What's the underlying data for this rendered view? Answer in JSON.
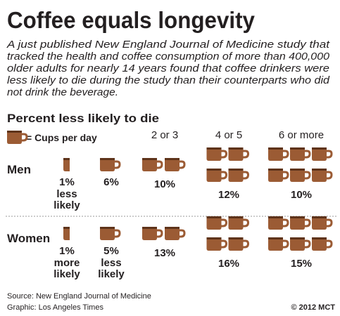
{
  "title": "Coffee equals longevity",
  "intro": [
    "A  just published New England Journal of Medicine study that",
    "tracked the health and coffee consumption of more than 400,000",
    "older adults for nearly 14 years found that coffee drinkers were",
    "less likely to die during the study than their counterparts who did",
    "not drink the beverage."
  ],
  "subtitle": "Percent less likely to die",
  "legend": "= Cups per day",
  "columns": [
    null,
    null,
    "2 or 3",
    "4 or 5",
    "6 or more"
  ],
  "rows": [
    {
      "label": "Men",
      "cells": [
        {
          "text": "1%",
          "note": [
            "less",
            "likely"
          ]
        },
        {
          "text": "6%"
        },
        {
          "text": "10%"
        },
        {
          "text": "12%"
        },
        {
          "text": "10%"
        }
      ]
    },
    {
      "label": "Women",
      "cells": [
        {
          "text": "1%",
          "note": [
            "more",
            "likely"
          ]
        },
        {
          "text": "5%",
          "note": [
            "less",
            "likely"
          ]
        },
        {
          "text": "13%"
        },
        {
          "text": "16%"
        },
        {
          "text": "15%"
        }
      ]
    }
  ],
  "source": "Source: New England Journal of Medicine",
  "credit": "Graphic: Los Angeles Times",
  "copyright": "© 2012 MCT"
}
